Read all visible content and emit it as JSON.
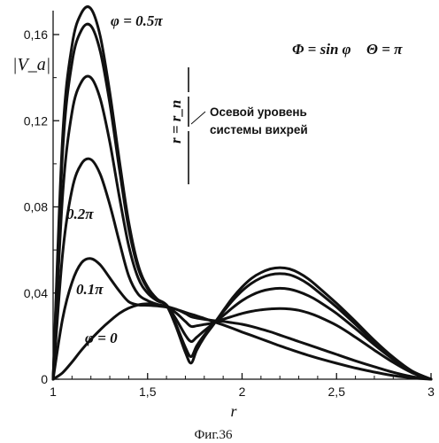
{
  "chart_data": {
    "type": "line",
    "xlabel": "r",
    "ylabel": "|V_a|",
    "xlim": [
      1,
      3
    ],
    "ylim": [
      0,
      0.175
    ],
    "x_ticks": [
      1,
      1.5,
      2,
      2.5,
      3
    ],
    "x_tick_labels": [
      "1",
      "1,5",
      "2",
      "2,5",
      "3"
    ],
    "y_ticks": [
      0,
      0.04,
      0.08,
      0.12,
      0.16
    ],
    "y_tick_labels": [
      "0",
      "0,04",
      "0,08",
      "0,12",
      "0,16"
    ],
    "grid": false,
    "series_labels": [
      "φ = 0.5π",
      "0.2π",
      "0.1π",
      "φ = 0"
    ],
    "formulas": {
      "phi": "Φ = sin φ",
      "theta": "Θ = π"
    },
    "marker": {
      "label": "r = r_n",
      "x": 1.73,
      "text_line1": "Осевой уровень",
      "text_line2": "системы вихрей"
    },
    "caption": "Фиг.36",
    "x": [
      1.0,
      1.05,
      1.1,
      1.15,
      1.2,
      1.25,
      1.3,
      1.35,
      1.4,
      1.45,
      1.5,
      1.55,
      1.6,
      1.65,
      1.7,
      1.73,
      1.76,
      1.8,
      1.85,
      1.9,
      1.95,
      2.0,
      2.05,
      2.1,
      2.15,
      2.2,
      2.25,
      2.3,
      2.35,
      2.4,
      2.5,
      2.6,
      2.7,
      2.8,
      2.9,
      3.0
    ],
    "series": [
      {
        "values": [
          0.0,
          0.003,
          0.008,
          0.0135,
          0.0185,
          0.023,
          0.027,
          0.0305,
          0.033,
          0.0345,
          0.035,
          0.0347,
          0.0338,
          0.0325,
          0.031,
          0.0302,
          0.0294,
          0.0282,
          0.0267,
          0.0252,
          0.0236,
          0.0219,
          0.0203,
          0.0187,
          0.0171,
          0.0155,
          0.014,
          0.0125,
          0.0111,
          0.0098,
          0.0074,
          0.0052,
          0.0033,
          0.0017,
          0.0006,
          0.0
        ]
      },
      {
        "values": [
          0.0,
          0.028,
          0.045,
          0.054,
          0.056,
          0.053,
          0.047,
          0.041,
          0.036,
          0.0345,
          0.0343,
          0.034,
          0.0335,
          0.0325,
          0.0305,
          0.029,
          0.0284,
          0.0278,
          0.0272,
          0.0268,
          0.0262,
          0.0255,
          0.0245,
          0.0233,
          0.022,
          0.0205,
          0.019,
          0.0175,
          0.016,
          0.0145,
          0.0115,
          0.0085,
          0.0058,
          0.0032,
          0.0012,
          0.0
        ]
      },
      {
        "values": [
          0.0,
          0.058,
          0.088,
          0.1,
          0.102,
          0.095,
          0.081,
          0.064,
          0.048,
          0.0395,
          0.0365,
          0.0348,
          0.0336,
          0.0308,
          0.0268,
          0.0245,
          0.0248,
          0.0254,
          0.0262,
          0.0278,
          0.0292,
          0.0305,
          0.0315,
          0.0322,
          0.0326,
          0.0328,
          0.0326,
          0.032,
          0.0308,
          0.0292,
          0.025,
          0.0195,
          0.0135,
          0.0078,
          0.003,
          0.0
        ]
      },
      {
        "values": [
          0.0,
          0.085,
          0.124,
          0.138,
          0.14,
          0.13,
          0.11,
          0.085,
          0.062,
          0.047,
          0.04,
          0.0365,
          0.0345,
          0.028,
          0.0205,
          0.0175,
          0.0195,
          0.0225,
          0.026,
          0.0295,
          0.0332,
          0.0365,
          0.039,
          0.0408,
          0.0418,
          0.0422,
          0.0418,
          0.0406,
          0.0388,
          0.0364,
          0.0305,
          0.0235,
          0.016,
          0.0092,
          0.0035,
          0.0
        ]
      },
      {
        "values": [
          0.0,
          0.105,
          0.147,
          0.162,
          0.164,
          0.152,
          0.128,
          0.098,
          0.07,
          0.0515,
          0.042,
          0.037,
          0.0343,
          0.0255,
          0.0148,
          0.0105,
          0.0155,
          0.0205,
          0.0258,
          0.0312,
          0.0365,
          0.041,
          0.0445,
          0.047,
          0.0485,
          0.049,
          0.0485,
          0.0468,
          0.0442,
          0.0408,
          0.0335,
          0.0255,
          0.0172,
          0.0098,
          0.0036,
          0.0
        ]
      },
      {
        "values": [
          0.0,
          0.112,
          0.155,
          0.17,
          0.172,
          0.159,
          0.133,
          0.102,
          0.073,
          0.053,
          0.0428,
          0.0373,
          0.0343,
          0.0245,
          0.0125,
          0.0075,
          0.0135,
          0.0195,
          0.0255,
          0.0318,
          0.0378,
          0.0428,
          0.0468,
          0.0495,
          0.0512,
          0.0518,
          0.0512,
          0.0494,
          0.0466,
          0.043,
          0.0352,
          0.0268,
          0.018,
          0.0102,
          0.0038,
          0.0
        ]
      }
    ]
  }
}
